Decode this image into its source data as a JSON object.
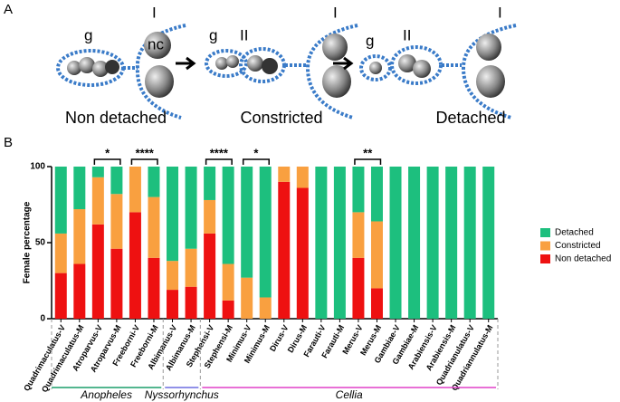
{
  "panel_labels": [
    "A",
    "B"
  ],
  "panel_a": {
    "labels": [
      "g",
      "I",
      "nc",
      "g",
      "II",
      "I",
      "g",
      "II",
      "I"
    ],
    "captions": [
      "Non detached",
      "Constricted",
      "Detached"
    ]
  },
  "chart_data": {
    "type": "stacked_bar",
    "y_label": "Female percentage",
    "categories": [
      "Quadrimaculatus-V",
      "Quadrimaculatus-M",
      "Atroparvus-V",
      "Atroparvus-M",
      "Freeborni-V",
      "Freeborni-M",
      "Albimanus-V",
      "Albimanus-M",
      "Stephensi-V",
      "Stephensi-M",
      "Minimus-V",
      "Minimus-M",
      "Dirus-V",
      "Dirus-M",
      "Farauti-V",
      "Farauti-M",
      "Merus-V",
      "Merus-M",
      "Gambiae-V",
      "Gambiae-M",
      "Arabiensis-V",
      "Arabiensis-M",
      "Quadrianulatus-V",
      "Quadriannulatus-M"
    ],
    "series": [
      {
        "name": "Non detached",
        "color": "#ee1111",
        "values": [
          30,
          36,
          62,
          46,
          70,
          40,
          19,
          21,
          56,
          12,
          0,
          0,
          90,
          86,
          0,
          0,
          40,
          20,
          0,
          0,
          0,
          0,
          0,
          0
        ]
      },
      {
        "name": "Constricted",
        "color": "#f9a040",
        "values": [
          26,
          36,
          31,
          36,
          30,
          40,
          19,
          25,
          22,
          24,
          27,
          14,
          10,
          14,
          0,
          0,
          30,
          44,
          0,
          0,
          0,
          0,
          0,
          0
        ]
      },
      {
        "name": "Detached",
        "color": "#1dbf7e",
        "values": [
          44,
          28,
          7,
          18,
          0,
          20,
          62,
          54,
          22,
          64,
          73,
          86,
          0,
          0,
          100,
          100,
          30,
          36,
          100,
          100,
          100,
          100,
          100,
          100
        ]
      }
    ],
    "ylim": [
      0,
      100
    ],
    "yticks": [
      0,
      50,
      100
    ],
    "legend": "right",
    "annotations": [
      {
        "text": "*",
        "pair": [
          2,
          3
        ]
      },
      {
        "text": "****",
        "pair": [
          4,
          5
        ]
      },
      {
        "text": "****",
        "pair": [
          8,
          9
        ]
      },
      {
        "text": "*",
        "pair": [
          10,
          11
        ]
      },
      {
        "text": "**",
        "pair": [
          16,
          17
        ]
      }
    ],
    "groups": [
      {
        "name": "Anopheles",
        "color": "#1a9e6a",
        "from": 0,
        "to": 5
      },
      {
        "name": "Nyssorhynchus",
        "color": "#6d6de0",
        "from": 6,
        "to": 7
      },
      {
        "name": "Cellia",
        "color": "#e040c8",
        "from": 8,
        "to": 23
      }
    ]
  }
}
